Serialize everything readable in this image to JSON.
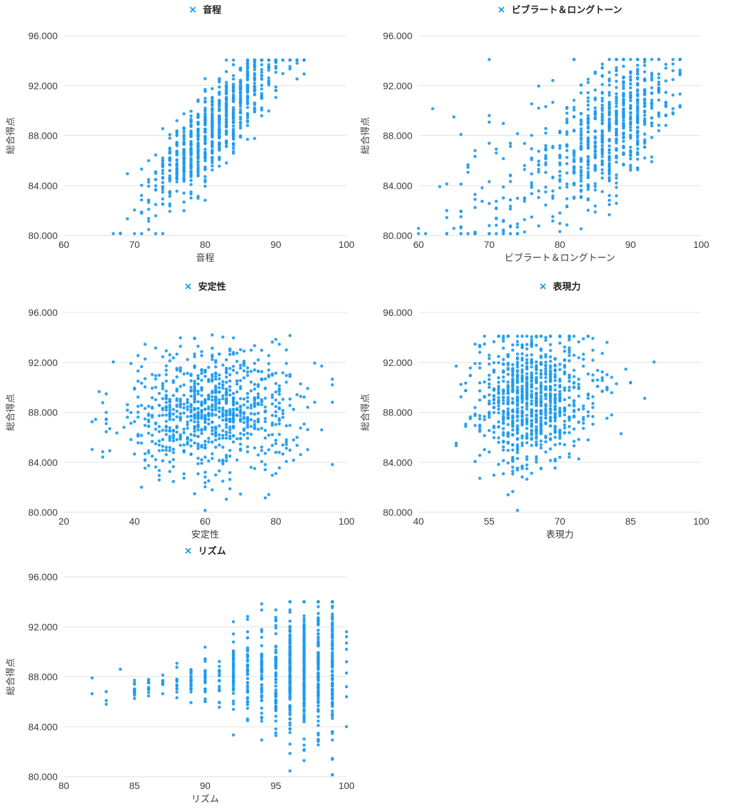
{
  "page": {
    "background": "#ffffff"
  },
  "style": {
    "point_color": "#1E9BF0",
    "grid_color": "#E3E3E3",
    "axis_line_color": "#DCDCDC",
    "tick_text_color": "#3B3B3B",
    "title_text_color": "#3B3B3B",
    "legend_text_color": "#222222",
    "legend_marker": "✕"
  },
  "chart_data": [
    {
      "type": "scatter",
      "legend": "音程",
      "xlabel": "音程",
      "ylabel": "総合得点",
      "xlim": [
        60,
        100
      ],
      "xticks": [
        60,
        70,
        80,
        90,
        100
      ],
      "ylim": [
        80,
        96
      ],
      "yticks": [
        80,
        84,
        88,
        92,
        96
      ],
      "ytick_labels": [
        "80.000",
        "84.000",
        "88.000",
        "92.000",
        "96.000"
      ],
      "marker": "circle",
      "n_points": 820,
      "seed": 101,
      "x_dist": {
        "components": [
          {
            "mean": 81.3,
            "sd": 4.8,
            "weight": 1
          }
        ],
        "round": true,
        "min": 67,
        "max": 94
      },
      "y_model": {
        "x_ref": 81,
        "base": 88.6,
        "slope": 0.6,
        "sd": 1.6,
        "sd_slope": 0,
        "min": 80.15,
        "max": 94.05
      },
      "extra_points": []
    },
    {
      "type": "scatter",
      "legend": "ビブラート＆ロングトーン",
      "xlabel": "ビブラート＆ロングトーン",
      "ylabel": "総合得点",
      "xlim": [
        60,
        100
      ],
      "xticks": [
        60,
        70,
        80,
        90,
        100
      ],
      "ylim": [
        80,
        96
      ],
      "yticks": [
        80,
        84,
        88,
        92,
        96
      ],
      "ytick_labels": [
        "80.000",
        "84.000",
        "88.000",
        "92.000",
        "96.000"
      ],
      "marker": "circle",
      "n_points": 780,
      "seed": 202,
      "x_dist": {
        "components": [
          {
            "mean": 88.2,
            "sd": 4.2,
            "weight": 0.75
          },
          {
            "mean": 76,
            "sd": 7,
            "weight": 0.25
          }
        ],
        "round": true,
        "min": 60,
        "max": 97
      },
      "y_model": {
        "x_ref": 88,
        "base": 88.7,
        "slope": 0.34,
        "sd": 2.4,
        "sd_slope": -0.05,
        "min": 80.15,
        "max": 94.1
      },
      "extra_points": []
    },
    {
      "type": "scatter",
      "legend": "安定性",
      "xlabel": "安定性",
      "ylabel": "総合得点",
      "xlim": [
        20,
        100
      ],
      "xticks": [
        20,
        40,
        60,
        80,
        100
      ],
      "ylim": [
        80,
        96
      ],
      "yticks": [
        80,
        84,
        88,
        92,
        96
      ],
      "ytick_labels": [
        "80.000",
        "84.000",
        "88.000",
        "92.000",
        "96.000"
      ],
      "marker": "circle",
      "n_points": 880,
      "seed": 303,
      "x_dist": {
        "components": [
          {
            "mean": 62,
            "sd": 12.5,
            "weight": 1
          }
        ],
        "round": true,
        "min": 22,
        "max": 96
      },
      "y_model": {
        "x_ref": 62,
        "base": 88.1,
        "slope": 0.015,
        "sd": 2.55,
        "sd_slope": 0,
        "min": 80.15,
        "max": 94.2
      },
      "extra_points": []
    },
    {
      "type": "scatter",
      "legend": "表現力",
      "xlabel": "表現力",
      "ylabel": "総合得点",
      "xlim": [
        40,
        100
      ],
      "xticks": [
        40,
        55,
        70,
        85,
        100
      ],
      "ylim": [
        80,
        96
      ],
      "yticks": [
        80,
        84,
        88,
        92,
        96
      ],
      "ytick_labels": [
        "80.000",
        "84.000",
        "88.000",
        "92.000",
        "96.000"
      ],
      "marker": "circle",
      "n_points": 900,
      "seed": 404,
      "x_dist": {
        "components": [
          {
            "mean": 63.2,
            "sd": 5.8,
            "weight": 0.93
          },
          {
            "mean": 75,
            "sd": 7,
            "weight": 0.07
          }
        ],
        "round": true,
        "min": 48,
        "max": 92
      },
      "y_model": {
        "x_ref": 63,
        "base": 89.0,
        "slope": 0.05,
        "sd": 2.5,
        "sd_slope": 0,
        "min": 80.15,
        "max": 94.1
      },
      "extra_points": []
    },
    {
      "type": "scatter",
      "legend": "リズム",
      "xlabel": "リズム",
      "ylabel": "総合得点",
      "xlim": [
        80,
        100
      ],
      "xticks": [
        80,
        85,
        90,
        95,
        100
      ],
      "ylim": [
        80,
        96
      ],
      "yticks": [
        80,
        84,
        88,
        92,
        96
      ],
      "ytick_labels": [
        "80.000",
        "84.000",
        "88.000",
        "92.000",
        "96.000"
      ],
      "marker": "circle",
      "n_points": 780,
      "seed": 505,
      "x_dist": {
        "components": [
          {
            "mean": 97.3,
            "sd": 1.6,
            "weight": 0.62
          },
          {
            "mean": 93.5,
            "sd": 2.6,
            "weight": 0.3
          },
          {
            "mean": 87.5,
            "sd": 2.6,
            "weight": 0.08
          }
        ],
        "round": true,
        "min": 81,
        "max": 99
      },
      "y_model": {
        "x_ref": 97,
        "base": 88.6,
        "slope": 0.12,
        "sd": 2.9,
        "sd_slope": 0.28,
        "min": 80.15,
        "max": 94.0
      },
      "extra_points": [
        [
          100,
          91.6
        ],
        [
          100,
          91.2
        ],
        [
          100,
          90.7
        ],
        [
          100,
          90.2
        ],
        [
          100,
          89.2
        ],
        [
          100,
          88.3
        ],
        [
          100,
          87.2
        ],
        [
          100,
          86.4
        ],
        [
          100,
          84.0
        ],
        [
          82,
          87.9
        ],
        [
          83,
          85.8
        ],
        [
          84,
          88.6
        ],
        [
          85,
          87.5
        ]
      ]
    }
  ]
}
